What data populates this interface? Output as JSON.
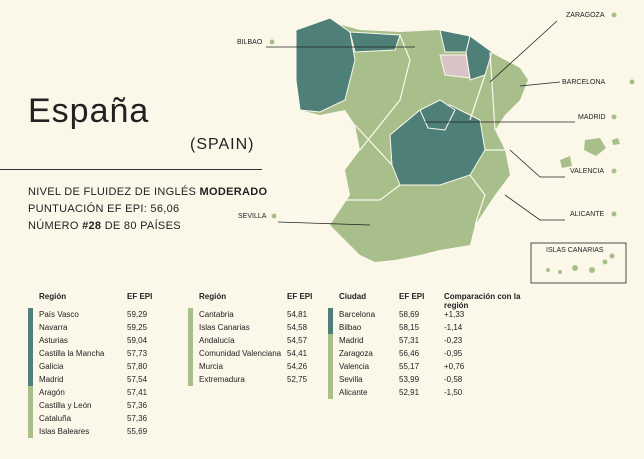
{
  "header": {
    "title": "España",
    "subtitle": "(SPAIN)"
  },
  "summary": {
    "fluency_label": "NIVEL DE FLUIDEZ DE INGLÉS",
    "fluency_level": "MODERADO",
    "score": "PUNTUACIÓN EF EPI: 56,06",
    "rank_prefix": "NÚMERO",
    "rank": "#28",
    "rank_suffix": "DE 80 PAÍSES"
  },
  "map": {
    "labels": {
      "zaragoza": "ZARAGOZA",
      "bilbao": "BILBAO",
      "barcelona": "BARCELONA",
      "madrid": "MADRID",
      "valencia": "VALENCIA",
      "sevilla": "SEVILLA",
      "alicante": "ALICANTE",
      "canarias": "ISLAS CANARIAS"
    }
  },
  "tables": [
    {
      "headers": [
        "Región",
        "EF EPI"
      ],
      "rows": [
        {
          "cells": [
            "País Vasco",
            "59,29"
          ],
          "color": "#4e7f78"
        },
        {
          "cells": [
            "Navarra",
            "59,25"
          ],
          "color": "#4e7f78"
        },
        {
          "cells": [
            "Asturias",
            "59,04"
          ],
          "color": "#4e7f78"
        },
        {
          "cells": [
            "Castilla la Mancha",
            "57,73"
          ],
          "color": "#4e7f78"
        },
        {
          "cells": [
            "Galicia",
            "57,80"
          ],
          "color": "#4e7f78"
        },
        {
          "cells": [
            "Madrid",
            "57,54"
          ],
          "color": "#4e7f78"
        },
        {
          "cells": [
            "Aragón",
            "57,41"
          ],
          "color": "#a8bf8c"
        },
        {
          "cells": [
            "Castilla y León",
            "57,36"
          ],
          "color": "#a8bf8c"
        },
        {
          "cells": [
            "Cataluña",
            "57,36"
          ],
          "color": "#a8bf8c"
        },
        {
          "cells": [
            "Islas Baleares",
            "55,69"
          ],
          "color": "#a8bf8c"
        }
      ]
    },
    {
      "headers": [
        "Región",
        "EF EPI"
      ],
      "rows": [
        {
          "cells": [
            "Cantabria",
            "54,81"
          ],
          "color": "#a8bf8c"
        },
        {
          "cells": [
            "Islas Canarias",
            "54,58"
          ],
          "color": "#a8bf8c"
        },
        {
          "cells": [
            "Andalucía",
            "54,57"
          ],
          "color": "#a8bf8c"
        },
        {
          "cells": [
            "Comunidad Valenciana",
            "54,41"
          ],
          "color": "#a8bf8c"
        },
        {
          "cells": [
            "Murcia",
            "54,26"
          ],
          "color": "#a8bf8c"
        },
        {
          "cells": [
            "Extremadura",
            "52,75"
          ],
          "color": "#a8bf8c"
        }
      ]
    },
    {
      "headers": [
        "Ciudad",
        "EF EPI",
        "Comparación con la región"
      ],
      "rows": [
        {
          "cells": [
            "Barcelona",
            "58,69",
            "+1,33"
          ],
          "color": "#4e7f78"
        },
        {
          "cells": [
            "Bilbao",
            "58,15",
            "-1,14"
          ],
          "color": "#4e7f78"
        },
        {
          "cells": [
            "Madrid",
            "57,31",
            "-0,23"
          ],
          "color": "#a8bf8c"
        },
        {
          "cells": [
            "Zaragoza",
            "56,46",
            "-0,95"
          ],
          "color": "#a8bf8c"
        },
        {
          "cells": [
            "Valencia",
            "55,17",
            "+0,76"
          ],
          "color": "#a8bf8c"
        },
        {
          "cells": [
            "Sevilla",
            "53,99",
            "-0,58"
          ],
          "color": "#a8bf8c"
        },
        {
          "cells": [
            "Alicante",
            "52,91",
            "-1,50"
          ],
          "color": "#a8bf8c"
        }
      ]
    }
  ]
}
